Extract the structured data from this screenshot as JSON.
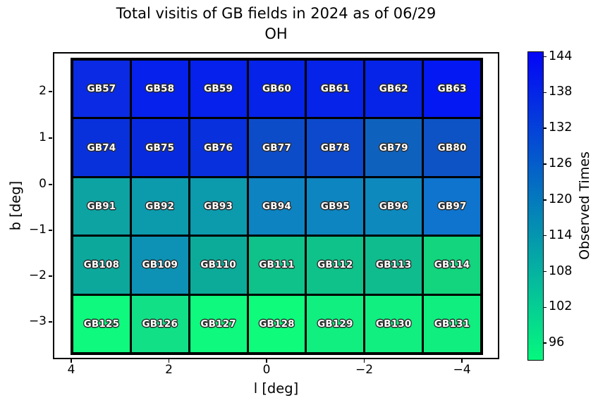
{
  "title": {
    "line1": "Total visitis of GB fields in 2024 as of 06/29",
    "line2": "OH"
  },
  "axes": {
    "xlabel": "l [deg]",
    "ylabel": "b [deg]",
    "x_tick_labels": [
      "4",
      "2",
      "0",
      "−2",
      "−4"
    ],
    "y_tick_labels": [
      "2",
      "1",
      "0",
      "−1",
      "−2",
      "−3"
    ]
  },
  "colorbar": {
    "label": "Observed Times",
    "tick_labels": [
      "144",
      "138",
      "132",
      "126",
      "120",
      "114",
      "108",
      "102",
      "96"
    ],
    "tick_values": [
      144,
      138,
      132,
      126,
      120,
      114,
      108,
      102,
      96
    ],
    "vmin": 93.3,
    "vmax": 144.9,
    "high_color": "#0405F7",
    "low_color": "#05F87E"
  },
  "chart_data": {
    "type": "heatmap",
    "title": "Total visitis of GB fields in 2024 as of 06/29 OH",
    "xlabel": "l [deg]",
    "ylabel": "b [deg]",
    "x_tick_values": [
      4,
      2,
      0,
      -2,
      -4
    ],
    "y_tick_values": [
      2,
      1,
      0,
      -1,
      -2,
      -3
    ],
    "x_axis_reversed": true,
    "grid_shape": {
      "rows": 5,
      "cols": 7
    },
    "colorbar": {
      "label": "Observed Times",
      "colormap": "winter (blue = high, green = low)",
      "vmin": 93.3,
      "vmax": 144.9,
      "tick_values": [
        96,
        102,
        108,
        114,
        120,
        126,
        132,
        138,
        144
      ]
    },
    "cells": [
      [
        {
          "field": "GB57",
          "value": 136,
          "color": "#0A2BE3"
        },
        {
          "field": "GB58",
          "value": 138,
          "color": "#0521EB"
        },
        {
          "field": "GB59",
          "value": 138,
          "color": "#0521EB"
        },
        {
          "field": "GB60",
          "value": 138,
          "color": "#0523E9"
        },
        {
          "field": "GB61",
          "value": 138,
          "color": "#0523E9"
        },
        {
          "field": "GB62",
          "value": 138,
          "color": "#0524E8"
        },
        {
          "field": "GB63",
          "value": 140,
          "color": "#0318F2"
        }
      ],
      [
        {
          "field": "GB74",
          "value": 134,
          "color": "#0931DB"
        },
        {
          "field": "GB75",
          "value": 136,
          "color": "#082ADF"
        },
        {
          "field": "GB76",
          "value": 135,
          "color": "#0830DD"
        },
        {
          "field": "GB77",
          "value": 130,
          "color": "#0D4CC9"
        },
        {
          "field": "GB78",
          "value": 130,
          "color": "#0C49CC"
        },
        {
          "field": "GB79",
          "value": 125,
          "color": "#0E62BD"
        },
        {
          "field": "GB80",
          "value": 128,
          "color": "#0D53C5"
        }
      ],
      [
        {
          "field": "GB91",
          "value": 112,
          "color": "#0DA3A2"
        },
        {
          "field": "GB92",
          "value": 114,
          "color": "#0C9AAD"
        },
        {
          "field": "GB93",
          "value": 114,
          "color": "#0C9AAD"
        },
        {
          "field": "GB94",
          "value": 118,
          "color": "#0D83C2"
        },
        {
          "field": "GB95",
          "value": 118,
          "color": "#0D85C0"
        },
        {
          "field": "GB96",
          "value": 117,
          "color": "#0D89BD"
        },
        {
          "field": "GB97",
          "value": 121,
          "color": "#0E74CE"
        }
      ],
      [
        {
          "field": "GB108",
          "value": 111,
          "color": "#0CA89C"
        },
        {
          "field": "GB109",
          "value": 115,
          "color": "#0D92B5"
        },
        {
          "field": "GB110",
          "value": 110,
          "color": "#0CAB99"
        },
        {
          "field": "GB111",
          "value": 105,
          "color": "#0FC289"
        },
        {
          "field": "GB112",
          "value": 105,
          "color": "#0FC289"
        },
        {
          "field": "GB113",
          "value": 107,
          "color": "#0FBC8D"
        },
        {
          "field": "GB114",
          "value": 102,
          "color": "#12D57D"
        }
      ],
      [
        {
          "field": "GB125",
          "value": 94,
          "color": "#0EF97D"
        },
        {
          "field": "GB126",
          "value": 99,
          "color": "#12E087"
        },
        {
          "field": "GB127",
          "value": 94,
          "color": "#0EF97D"
        },
        {
          "field": "GB128",
          "value": 94,
          "color": "#0EFB7C"
        },
        {
          "field": "GB129",
          "value": 96,
          "color": "#10EF80"
        },
        {
          "field": "GB130",
          "value": 96,
          "color": "#10EF80"
        },
        {
          "field": "GB131",
          "value": 96,
          "color": "#10EE80"
        }
      ]
    ]
  }
}
